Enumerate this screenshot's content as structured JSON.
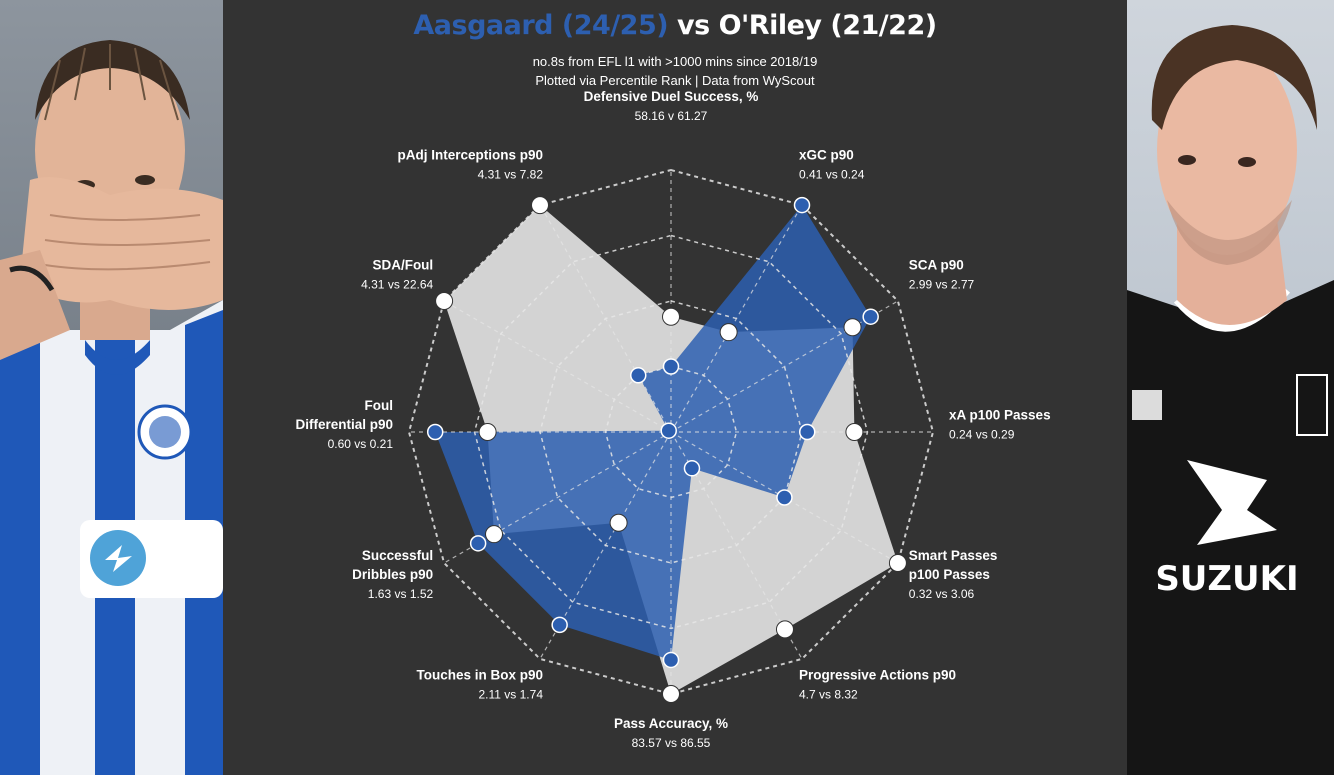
{
  "title": {
    "player_a": "Aasgaard (24/25)",
    "vs_text": " vs O'Riley (21/22)"
  },
  "subtitle_line1": "no.8s from EFL l1  with >1000 mins since 2018/19",
  "subtitle_line2": "Plotted via Percentile Rank | Data from WyScout",
  "colors": {
    "background": "#333333",
    "player_a": "#2d5fb0",
    "player_b": "#d3d3d3",
    "title_accent": "#2d5fb0"
  },
  "chart_data": {
    "type": "radar",
    "scale": "percentile rank",
    "range": [
      0,
      100
    ],
    "axes": [
      {
        "name_lines": [
          "Defensive Duel Success, %"
        ],
        "values_text": "58.16 v 61.27"
      },
      {
        "name_lines": [
          "xGC p90"
        ],
        "values_text": "0.41 vs 0.24"
      },
      {
        "name_lines": [
          "SCA p90"
        ],
        "values_text": "2.99 vs 2.77"
      },
      {
        "name_lines": [
          "xA p100 Passes"
        ],
        "values_text": "0.24 vs 0.29"
      },
      {
        "name_lines": [
          "Smart Passes",
          "p100 Passes"
        ],
        "values_text": "0.32 vs 3.06"
      },
      {
        "name_lines": [
          "Progressive Actions p90"
        ],
        "values_text": "4.7 vs 8.32"
      },
      {
        "name_lines": [
          "Pass Accuracy, %"
        ],
        "values_text": "83.57 vs 86.55"
      },
      {
        "name_lines": [
          "Touches in Box p90"
        ],
        "values_text": "2.11 vs 1.74"
      },
      {
        "name_lines": [
          "Successful",
          "Dribbles p90"
        ],
        "values_text": "1.63 vs 1.52"
      },
      {
        "name_lines": [
          "Foul",
          "Differential p90"
        ],
        "values_text": "0.60 vs 0.21"
      },
      {
        "name_lines": [
          "SDA/Foul"
        ],
        "values_text": "4.31 vs 22.64"
      },
      {
        "name_lines": [
          "pAdj Interceptions p90"
        ],
        "values_text": "4.31 vs 7.82"
      }
    ],
    "series": [
      {
        "player": "Aasgaard",
        "percentiles": [
          25,
          100,
          88,
          52,
          50,
          16,
          87,
          85,
          85,
          90,
          1,
          25
        ]
      },
      {
        "player": "O'Riley",
        "percentiles": [
          44,
          44,
          80,
          70,
          100,
          87,
          100,
          40,
          78,
          70,
          100,
          100
        ]
      }
    ]
  }
}
